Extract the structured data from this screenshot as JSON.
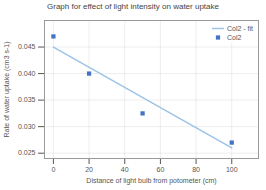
{
  "chart_data": {
    "type": "scatter",
    "title": "Graph for effect of light intensity on water uptake",
    "xlabel": "Distance of light bulb from potometer (cm)",
    "ylabel": "Rate of water uptake (cm3 s-1)",
    "series": [
      {
        "name": "Col2 - fit",
        "type": "line",
        "color": "#9dc3e6",
        "line_style": "solid",
        "x": [
          0,
          100
        ],
        "values": [
          0.045,
          0.026
        ]
      },
      {
        "name": "Col2",
        "type": "scatter",
        "color": "#4472c4",
        "marker": "square",
        "x": [
          0,
          20,
          50,
          100
        ],
        "values": [
          0.047,
          0.04,
          0.0325,
          0.027
        ]
      }
    ],
    "xlim": [
      -5,
      115
    ],
    "ylim": [
      0.024,
      0.05
    ],
    "xticks": [
      0,
      20,
      40,
      60,
      80,
      100
    ],
    "yticks": [
      {
        "value": 0.025,
        "label": "0.025"
      },
      {
        "value": 0.03,
        "label": "0.030"
      },
      {
        "value": 0.035,
        "label": "0.035"
      },
      {
        "value": 0.04,
        "label": "0.040"
      },
      {
        "value": 0.045,
        "label": "0.045"
      }
    ],
    "grid": true,
    "legend": "upper right"
  }
}
